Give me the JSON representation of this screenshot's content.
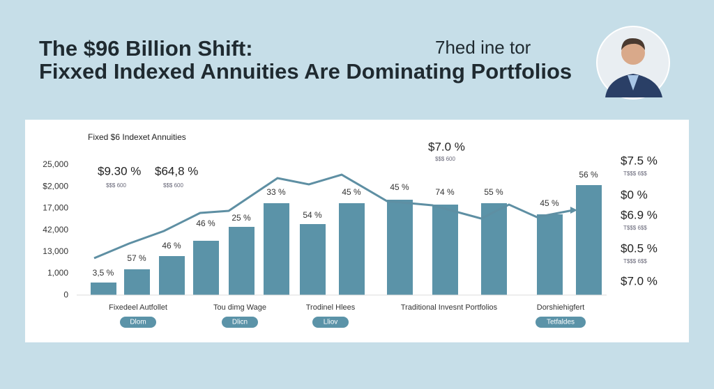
{
  "header": {
    "title_line1": "The $96 Billion Shift:",
    "aside": "7hed ine tor",
    "title_line2": "Fixxed Indexed Annuities Are Dominating Portfolios"
  },
  "panel": {
    "subtitle": "Fixed $6 Indexet Annuities",
    "top_label": {
      "main": "$7.0 %",
      "small": "$$$ 600"
    },
    "left_labels": [
      {
        "main": "$9.30 %",
        "small": "$$$ 600"
      },
      {
        "main": "$64,8 %",
        "small": "$$$ 600"
      }
    ],
    "y_axis_labels": [
      "25,000",
      "$2,000",
      "17,000",
      "42,000",
      "13,000",
      "1,000",
      "0"
    ],
    "bar_labels": [
      "3,5 %",
      "57 %",
      "46 %",
      "46 %",
      "25 %",
      "33 %",
      "54 %",
      "45 %",
      "45 %",
      "74 %",
      "55 %",
      "45 %",
      "56 %"
    ],
    "right_labels": [
      {
        "main": "$7.5 %",
        "small": "T$$$ 6$$"
      },
      {
        "main": "$0 %"
      },
      {
        "main": "$6.9 %",
        "small": "T$$$ 6$$"
      },
      {
        "main": "$0.5 %",
        "small": "T$$$ 6$$"
      },
      {
        "main": "$7.0 %"
      }
    ],
    "categories": [
      {
        "label": "Fixedeel Autfollet",
        "pill": "Dlom"
      },
      {
        "label": "Tou dimg Wage",
        "pill": "Dlicn"
      },
      {
        "label": "Trodinel Hlees",
        "pill": "Lliov"
      },
      {
        "label": "Traditional Invesnt Portfolios"
      },
      {
        "label": "Dorshiehigfert",
        "pill": "Tetfaldes"
      }
    ]
  }
}
